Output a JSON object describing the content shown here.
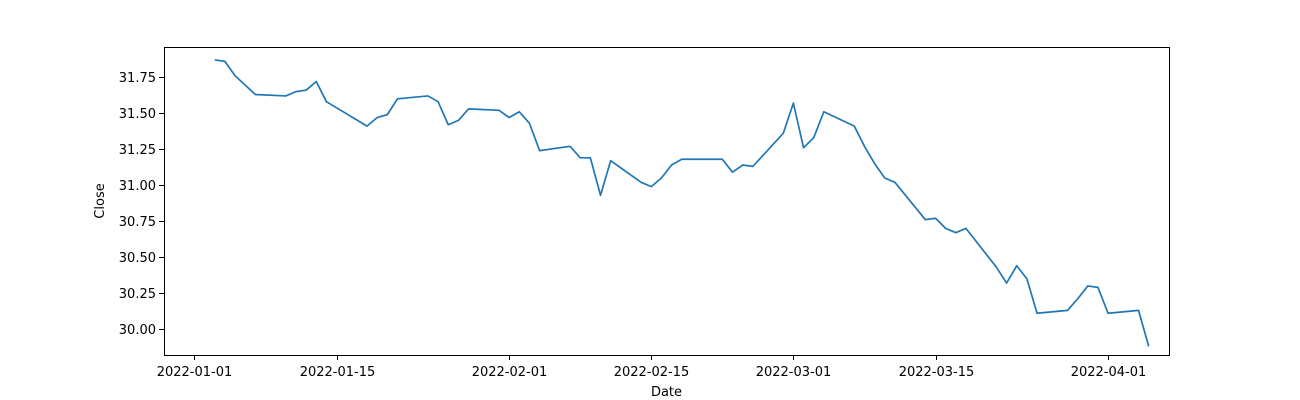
{
  "chart_data": {
    "type": "line",
    "xlabel": "Date",
    "ylabel": "Close",
    "xlim": [
      "2021-12-29",
      "2022-04-07"
    ],
    "ylim": [
      29.82,
      31.96
    ],
    "x_ticks": [
      "2022-01-01",
      "2022-01-15",
      "2022-02-01",
      "2022-02-15",
      "2022-03-01",
      "2022-03-15",
      "2022-04-01"
    ],
    "y_ticks": [
      "30.00",
      "30.25",
      "30.50",
      "30.75",
      "31.00",
      "31.25",
      "31.50",
      "31.75"
    ],
    "grid": false,
    "series": [
      {
        "color": "#1f77b4",
        "x": [
          "2022-01-03",
          "2022-01-04",
          "2022-01-05",
          "2022-01-07",
          "2022-01-10",
          "2022-01-11",
          "2022-01-12",
          "2022-01-13",
          "2022-01-14",
          "2022-01-18",
          "2022-01-19",
          "2022-01-20",
          "2022-01-21",
          "2022-01-24",
          "2022-01-25",
          "2022-01-26",
          "2022-01-27",
          "2022-01-28",
          "2022-01-31",
          "2022-02-01",
          "2022-02-02",
          "2022-02-03",
          "2022-02-04",
          "2022-02-07",
          "2022-02-08",
          "2022-02-09",
          "2022-02-10",
          "2022-02-11",
          "2022-02-14",
          "2022-02-15",
          "2022-02-16",
          "2022-02-17",
          "2022-02-18",
          "2022-02-22",
          "2022-02-23",
          "2022-02-24",
          "2022-02-25",
          "2022-02-28",
          "2022-03-01",
          "2022-03-02",
          "2022-03-03",
          "2022-03-04",
          "2022-03-07",
          "2022-03-08",
          "2022-03-09",
          "2022-03-10",
          "2022-03-11",
          "2022-03-14",
          "2022-03-15",
          "2022-03-16",
          "2022-03-17",
          "2022-03-18",
          "2022-03-21",
          "2022-03-22",
          "2022-03-23",
          "2022-03-24",
          "2022-03-25",
          "2022-03-28",
          "2022-03-29",
          "2022-03-30",
          "2022-03-31",
          "2022-04-01",
          "2022-04-04",
          "2022-04-05"
        ],
        "y": [
          31.87,
          31.86,
          31.76,
          31.63,
          31.62,
          31.65,
          31.66,
          31.72,
          31.58,
          31.41,
          31.47,
          31.49,
          31.6,
          31.62,
          31.58,
          31.42,
          31.45,
          31.53,
          31.52,
          31.47,
          31.51,
          31.43,
          31.24,
          31.27,
          31.19,
          31.19,
          30.93,
          31.17,
          31.02,
          30.99,
          31.05,
          31.14,
          31.18,
          31.18,
          31.09,
          31.14,
          31.13,
          31.36,
          31.57,
          31.26,
          31.33,
          31.51,
          31.41,
          31.27,
          31.15,
          31.05,
          31.02,
          30.76,
          30.77,
          30.7,
          30.67,
          30.7,
          30.43,
          30.32,
          30.44,
          30.35,
          30.11,
          30.13,
          30.21,
          30.3,
          30.29,
          30.11,
          30.13,
          29.88
        ]
      }
    ]
  }
}
